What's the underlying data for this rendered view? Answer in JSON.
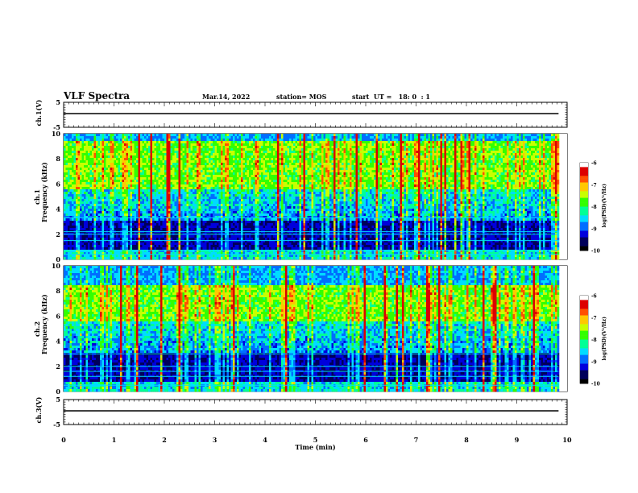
{
  "header": {
    "title": "VLF Spectra",
    "date": "Mar.14, 2022",
    "station": "station= MOS",
    "start": "start  UT =   18: 0  : 1"
  },
  "chart_data": {
    "type": "heatmap",
    "xlabel": "Time  (min)",
    "xlim": [
      0,
      10
    ],
    "xticks": [
      "0",
      "1",
      "2",
      "3",
      "4",
      "5",
      "6",
      "7",
      "8",
      "9",
      "10"
    ],
    "record_end_min": 9.83,
    "panels": [
      {
        "id": "ch1_waveform",
        "type": "line",
        "ylabel": "ch.1(V)",
        "ylim": [
          -5,
          5
        ],
        "yticks": [
          "5",
          "-5"
        ],
        "level": 0
      },
      {
        "id": "ch1_spectrogram",
        "type": "heatmap",
        "ylabel": "Frequency  (kHz)",
        "channel": "ch.1",
        "ylim": [
          0,
          10
        ],
        "yticks": [
          "0",
          "2",
          "4",
          "6",
          "8",
          "10"
        ],
        "intense_band_khz": [
          5.5,
          9.5
        ],
        "persistent_lines_khz": [
          0.4,
          0.7,
          1.5,
          2.0,
          2.2,
          3.3
        ],
        "colorbar": {
          "label": "log(PSD)(V²/Hz)",
          "ticks": [
            "-6",
            "-7",
            "-8",
            "-9",
            "-10"
          ],
          "range": [
            -10,
            -6
          ]
        }
      },
      {
        "id": "ch2_spectrogram",
        "type": "heatmap",
        "ylabel": "Frequency  (kHz)",
        "channel": "ch.2",
        "ylim": [
          0,
          10
        ],
        "yticks": [
          "0",
          "2",
          "4",
          "6",
          "8",
          "10"
        ],
        "intense_band_khz": [
          5.5,
          8.5
        ],
        "persistent_lines_khz": [
          0.5,
          1.2,
          1.6,
          2.0,
          3.0
        ],
        "colorbar": {
          "label": "log(PSD)(V²/Hz)",
          "ticks": [
            "-6",
            "-7",
            "-8",
            "-9",
            "-10"
          ],
          "range": [
            -10,
            -6
          ]
        }
      },
      {
        "id": "ch3_waveform",
        "type": "line",
        "ylabel": "ch.3(V)",
        "ylim": [
          -5,
          5
        ],
        "yticks": [
          "5",
          "-5"
        ],
        "level": 0
      }
    ],
    "colormap": [
      "#000000",
      "#00005a",
      "#0000dc",
      "#006eff",
      "#00dcff",
      "#00ff96",
      "#32ff00",
      "#c8ff00",
      "#ffc800",
      "#ff5000",
      "#dc0000",
      "#ffffff"
    ]
  }
}
